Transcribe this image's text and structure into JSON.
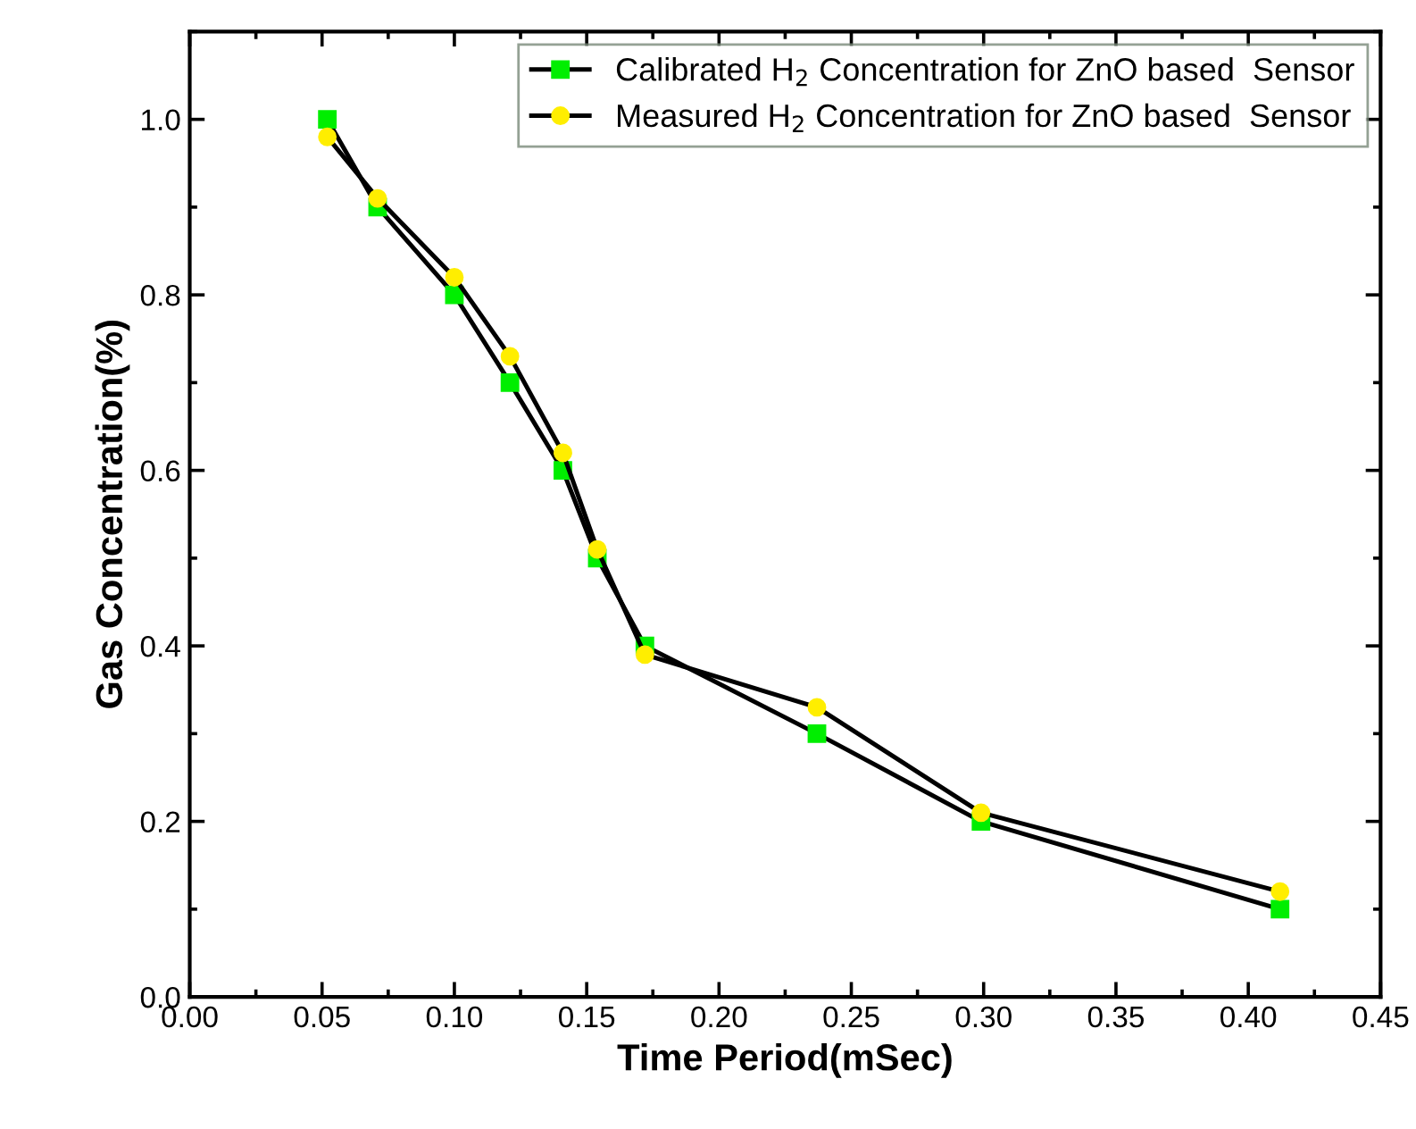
{
  "chart_data": {
    "type": "line",
    "xlabel": "Time Period(mSec)",
    "ylabel": "Gas Concentration(%)",
    "xlim": [
      0.0,
      0.45
    ],
    "xticks": [
      {
        "value": 0,
        "label": "0.00"
      },
      {
        "value": 0.05,
        "label": "0.05"
      },
      {
        "value": 0.1,
        "label": "0.10"
      },
      {
        "value": 0.15,
        "label": "0.15"
      },
      {
        "value": 0.2,
        "label": "0.20"
      },
      {
        "value": 0.25,
        "label": "0.25"
      },
      {
        "value": 0.3,
        "label": "0.30"
      },
      {
        "value": 0.35,
        "label": "0.35"
      },
      {
        "value": 0.4,
        "label": "0.40"
      },
      {
        "value": 0.45,
        "label": "0.45"
      }
    ],
    "ylim": [
      0.0,
      1.1
    ],
    "yticks": [
      {
        "value": 0,
        "label": "0.0"
      },
      {
        "value": 0.2,
        "label": "0.2"
      },
      {
        "value": 0.4,
        "label": "0.4"
      },
      {
        "value": 0.6,
        "label": "0.6"
      },
      {
        "value": 0.8,
        "label": "0.8"
      },
      {
        "value": 1.0,
        "label": "1.0"
      }
    ],
    "grid": false,
    "legend": "top right",
    "line_style": "solid",
    "series": [
      {
        "name": "Calibrated H$_{2}$ Concentration for ZnO based  Sensor",
        "color": "#00ee00",
        "marker": "square",
        "x": [
          0.052,
          0.071,
          0.1,
          0.121,
          0.141,
          0.154,
          0.172,
          0.237,
          0.299,
          0.412
        ],
        "values": [
          1.0,
          0.9,
          0.8,
          0.7,
          0.6,
          0.5,
          0.4,
          0.3,
          0.2,
          0.1
        ]
      },
      {
        "name": "Measured H$_{2}$ Concentration for ZnO based  Sensor",
        "color": "#ffee00",
        "marker": "circle",
        "x": [
          0.052,
          0.071,
          0.1,
          0.121,
          0.141,
          0.154,
          0.172,
          0.237,
          0.299,
          0.412
        ],
        "values": [
          0.98,
          0.91,
          0.82,
          0.73,
          0.62,
          0.51,
          0.39,
          0.33,
          0.21,
          0.12
        ]
      }
    ]
  }
}
